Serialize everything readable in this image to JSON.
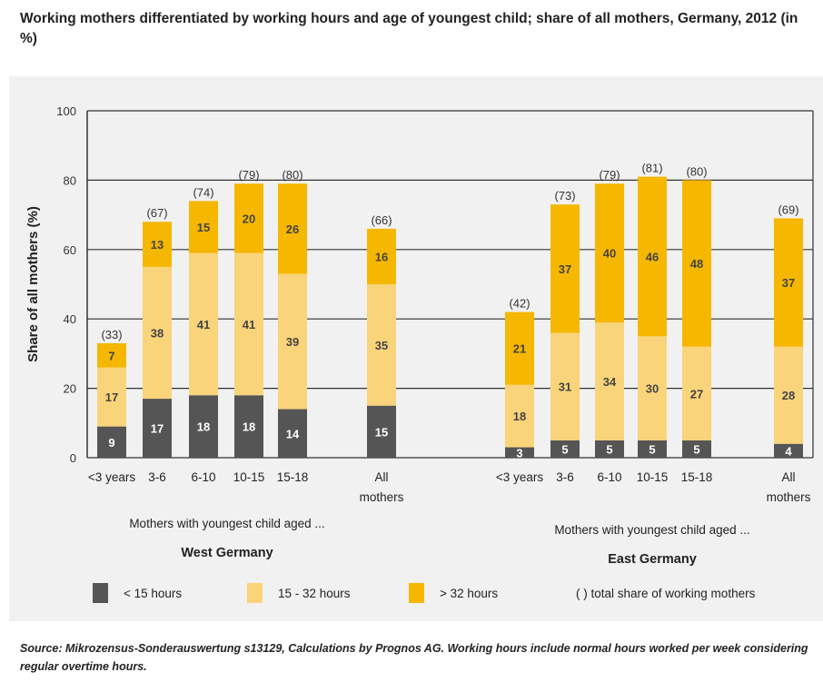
{
  "title": "Working mothers differentiated by working hours and age of youngest child; share of all mothers, Germany, 2012 (in %)",
  "source": "Source: Mikrozensus-Sonderauswertung  s13129, Calculations by Prognos AG. Working hours include normal hours worked per week considering regular overtime hours.",
  "colors": {
    "lt15": "#555555",
    "mid": "#fad47a",
    "gt32": "#f6b700",
    "panel": "#f1f1f1"
  },
  "chart_data": {
    "type": "bar",
    "stacked": true,
    "ylabel": "Share of all mothers (%)",
    "ylim": [
      0,
      100
    ],
    "yticks": [
      0,
      20,
      40,
      60,
      80,
      100
    ],
    "grid": true,
    "legend": [
      {
        "key": "lt15",
        "label": "< 15 hours"
      },
      {
        "key": "mid",
        "label": "15 - 32 hours"
      },
      {
        "key": "gt32",
        "label": "> 32 hours"
      },
      {
        "key": "total",
        "label": "( ) total share of working mothers"
      }
    ],
    "groups": [
      {
        "name": "West Germany",
        "caption": "Mothers with youngest child aged ...",
        "bars": [
          {
            "category": "<3 years",
            "lt15": 9,
            "mid": 17,
            "gt32": 7,
            "total": 33
          },
          {
            "category": "3-6",
            "lt15": 17,
            "mid": 38,
            "gt32": 13,
            "total": 67
          },
          {
            "category": "6-10",
            "lt15": 18,
            "mid": 41,
            "gt32": 15,
            "total": 74
          },
          {
            "category": "10-15",
            "lt15": 18,
            "mid": 41,
            "gt32": 20,
            "total": 79
          },
          {
            "category": "15-18",
            "lt15": 14,
            "mid": 39,
            "gt32": 26,
            "total": 80
          },
          {
            "category": "All mothers",
            "lt15": 15,
            "mid": 35,
            "gt32": 16,
            "total": 66
          }
        ]
      },
      {
        "name": "East Germany",
        "caption": "Mothers with youngest child aged ...",
        "bars": [
          {
            "category": "<3 years",
            "lt15": 3,
            "mid": 18,
            "gt32": 21,
            "total": 42
          },
          {
            "category": "3-6",
            "lt15": 5,
            "mid": 31,
            "gt32": 37,
            "total": 73
          },
          {
            "category": "6-10",
            "lt15": 5,
            "mid": 34,
            "gt32": 40,
            "total": 79
          },
          {
            "category": "10-15",
            "lt15": 5,
            "mid": 30,
            "gt32": 46,
            "total": 81
          },
          {
            "category": "15-18",
            "lt15": 5,
            "mid": 27,
            "gt32": 48,
            "total": 80
          },
          {
            "category": "All mothers",
            "lt15": 4,
            "mid": 28,
            "gt32": 37,
            "total": 69
          }
        ]
      }
    ]
  }
}
